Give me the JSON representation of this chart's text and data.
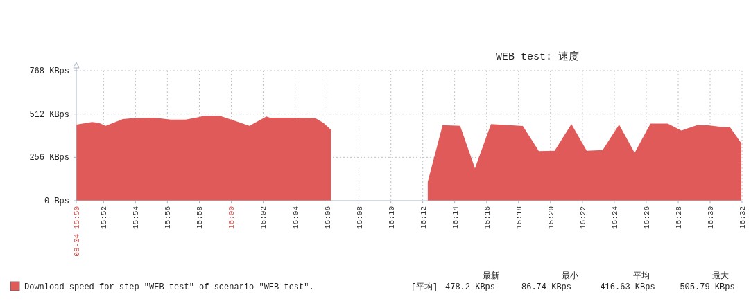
{
  "chart_data": {
    "type": "area",
    "title": "WEB test: 速度",
    "series": [
      {
        "name": "Download speed for step \"WEB test\" of scenario \"WEB test\".",
        "color": "#e05a5a",
        "x": [
          15.8382,
          15.8547,
          15.8618,
          15.869,
          15.8868,
          15.8965,
          15.919,
          15.9262,
          15.9368,
          15.9523,
          15.9667,
          15.9713,
          15.988,
          16.0,
          16.019,
          16.0368,
          16.0403,
          16.0593,
          16.088,
          16.0963,
          16.1042
        ],
        "values": [
          449,
          465,
          460,
          442,
          482,
          487,
          490,
          486,
          479,
          479,
          494,
          501,
          501,
          479,
          442,
          497,
          490,
          490,
          487,
          460,
          419
        ]
      },
      {
        "color": "#e05a5a",
        "x": [
          16.2052,
          16.2207,
          16.239,
          16.2545,
          16.2712,
          16.2902,
          16.3045,
          16.3212,
          16.3377,
          16.3552,
          16.3712,
          16.3878,
          16.405,
          16.4212,
          16.4378,
          16.4557,
          16.47,
          16.4865,
          16.4983,
          16.5113,
          16.5208,
          16.5325
        ],
        "values": [
          111,
          446,
          442,
          191,
          452,
          446,
          441,
          293,
          295,
          452,
          295,
          299,
          449,
          283,
          456,
          456,
          415,
          446,
          445,
          436,
          434,
          340
        ]
      }
    ],
    "xlim": [
      15.8382,
      16.5333
    ],
    "ylim": [
      0,
      768
    ],
    "xticks": [
      {
        "value": 15.8382,
        "label": "08-04 15:50"
      },
      {
        "value": 15.8667,
        "label": "15:52"
      },
      {
        "value": 15.9,
        "label": "15:54"
      },
      {
        "value": 15.9333,
        "label": "15:56"
      },
      {
        "value": 15.9667,
        "label": "15:58"
      },
      {
        "value": 16.0,
        "label": "16:00"
      },
      {
        "value": 16.0333,
        "label": "16:02"
      },
      {
        "value": 16.0667,
        "label": "16:04"
      },
      {
        "value": 16.1,
        "label": "16:06"
      },
      {
        "value": 16.1333,
        "label": "16:08"
      },
      {
        "value": 16.1667,
        "label": "16:10"
      },
      {
        "value": 16.2,
        "label": "16:12"
      },
      {
        "value": 16.2333,
        "label": "16:14"
      },
      {
        "value": 16.2667,
        "label": "16:16"
      },
      {
        "value": 16.3,
        "label": "16:18"
      },
      {
        "value": 16.3333,
        "label": "16:20"
      },
      {
        "value": 16.3667,
        "label": "16:22"
      },
      {
        "value": 16.4,
        "label": "16:24"
      },
      {
        "value": 16.4333,
        "label": "16:26"
      },
      {
        "value": 16.4667,
        "label": "16:28"
      },
      {
        "value": 16.5,
        "label": "16:30"
      },
      {
        "value": 16.5333,
        "label": "16:32"
      }
    ],
    "yticks": [
      {
        "value": 0,
        "label": "0 Bps"
      },
      {
        "value": 256,
        "label": "256 KBps"
      },
      {
        "value": 512,
        "label": "512 KBps"
      },
      {
        "value": 768,
        "label": "768 KBps"
      }
    ],
    "grid": true,
    "legend": "bottom left",
    "annotations": [
      "最新",
      "最小",
      "平均",
      "最大",
      "[平均]",
      "478.2 KBps",
      "86.74 KBps",
      "416.63 KBps",
      "505.79 KBps"
    ]
  }
}
